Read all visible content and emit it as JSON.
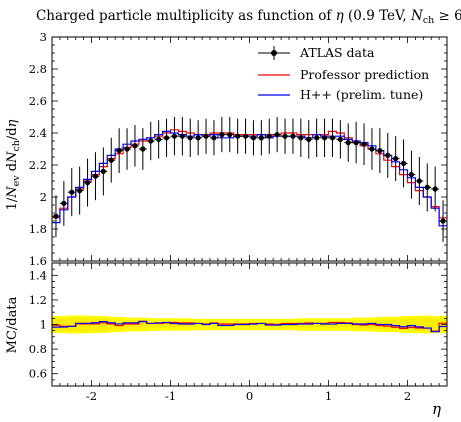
{
  "chart_data": {
    "type": "line",
    "title": "Charged particle multiplicity as function of η (0.9 TeV, N_ch ≥ 6)",
    "title_parts": {
      "prefix": "Charged particle multiplicity as function of ",
      "eta": "η",
      "cond_open": " (0.9 TeV, ",
      "nch": "N",
      "nch_sub": "ch",
      "cond_close": " ≥ 6)"
    },
    "xlabel": "η",
    "ylabel": "1/N_ev dN_ch/dη",
    "ylabel_parts": {
      "a": "1/",
      "n1": "N",
      "s1": "ev",
      "b": " d",
      "n2": "N",
      "s2": "ch",
      "c": "/d",
      "eta": "η"
    },
    "xlim": [
      -2.5,
      2.5
    ],
    "ylim": [
      1.6,
      3.0
    ],
    "xticks": [
      -2,
      -1,
      0,
      1,
      2
    ],
    "xtick_labels": [
      "-2",
      "-1",
      "0",
      "1",
      "2"
    ],
    "yticks": [
      1.6,
      1.8,
      2.0,
      2.2,
      2.4,
      2.6,
      2.8,
      3.0
    ],
    "ytick_labels": [
      "1.6",
      "1.8",
      "2",
      "2.2",
      "2.4",
      "2.6",
      "2.8",
      "3"
    ],
    "legend_position": "top-right",
    "grid": false,
    "x": [
      -2.45,
      -2.35,
      -2.25,
      -2.15,
      -2.05,
      -1.95,
      -1.85,
      -1.75,
      -1.65,
      -1.55,
      -1.45,
      -1.35,
      -1.25,
      -1.15,
      -1.05,
      -0.95,
      -0.85,
      -0.75,
      -0.65,
      -0.55,
      -0.45,
      -0.35,
      -0.25,
      -0.15,
      -0.05,
      0.05,
      0.15,
      0.25,
      0.35,
      0.45,
      0.55,
      0.65,
      0.75,
      0.85,
      0.95,
      1.05,
      1.15,
      1.25,
      1.35,
      1.45,
      1.55,
      1.65,
      1.75,
      1.85,
      1.95,
      2.05,
      2.15,
      2.25,
      2.35,
      2.45
    ],
    "series": [
      {
        "name": "ATLAS data",
        "color": "#000000",
        "style": "points",
        "values": [
          1.88,
          1.96,
          2.03,
          2.04,
          2.09,
          2.13,
          2.16,
          2.23,
          2.29,
          2.3,
          2.32,
          2.3,
          2.35,
          2.36,
          2.37,
          2.38,
          2.38,
          2.37,
          2.37,
          2.38,
          2.37,
          2.39,
          2.39,
          2.38,
          2.38,
          2.37,
          2.37,
          2.38,
          2.39,
          2.38,
          2.38,
          2.37,
          2.36,
          2.37,
          2.37,
          2.37,
          2.36,
          2.34,
          2.34,
          2.33,
          2.3,
          2.29,
          2.26,
          2.24,
          2.21,
          2.14,
          2.1,
          2.06,
          2.05,
          1.85
        ],
        "errors": [
          0.13,
          0.14,
          0.15,
          0.15,
          0.15,
          0.15,
          0.15,
          0.14,
          0.14,
          0.13,
          0.13,
          0.13,
          0.12,
          0.12,
          0.12,
          0.12,
          0.12,
          0.12,
          0.11,
          0.11,
          0.11,
          0.11,
          0.11,
          0.11,
          0.11,
          0.11,
          0.11,
          0.11,
          0.11,
          0.11,
          0.11,
          0.12,
          0.12,
          0.12,
          0.12,
          0.12,
          0.12,
          0.12,
          0.13,
          0.13,
          0.13,
          0.14,
          0.14,
          0.14,
          0.15,
          0.15,
          0.15,
          0.15,
          0.14,
          0.13
        ]
      },
      {
        "name": "Professor prediction",
        "color": "#ff0000",
        "style": "step",
        "values": [
          1.87,
          1.93,
          2.0,
          2.05,
          2.1,
          2.14,
          2.19,
          2.24,
          2.27,
          2.31,
          2.33,
          2.35,
          2.37,
          2.38,
          2.4,
          2.42,
          2.41,
          2.4,
          2.39,
          2.39,
          2.4,
          2.4,
          2.4,
          2.39,
          2.39,
          2.39,
          2.39,
          2.39,
          2.39,
          2.4,
          2.4,
          2.39,
          2.39,
          2.39,
          2.39,
          2.41,
          2.4,
          2.37,
          2.34,
          2.32,
          2.3,
          2.27,
          2.23,
          2.19,
          2.14,
          2.09,
          2.04,
          2.0,
          1.94,
          1.87
        ]
      },
      {
        "name": "H++ (prelim. tune)",
        "color": "#0000ff",
        "style": "step",
        "values": [
          1.84,
          1.92,
          2.0,
          2.06,
          2.11,
          2.16,
          2.21,
          2.26,
          2.3,
          2.33,
          2.35,
          2.36,
          2.37,
          2.39,
          2.41,
          2.4,
          2.39,
          2.38,
          2.39,
          2.38,
          2.39,
          2.37,
          2.37,
          2.38,
          2.38,
          2.38,
          2.39,
          2.37,
          2.38,
          2.38,
          2.38,
          2.38,
          2.37,
          2.39,
          2.38,
          2.38,
          2.38,
          2.36,
          2.35,
          2.34,
          2.32,
          2.29,
          2.26,
          2.22,
          2.17,
          2.12,
          2.06,
          2.0,
          1.93,
          1.82
        ]
      }
    ],
    "ratio_panel": {
      "ylabel": "MC/data",
      "ylim": [
        0.5,
        1.5
      ],
      "yticks": [
        0.6,
        0.8,
        1.0,
        1.2,
        1.4
      ],
      "ytick_labels": [
        "0.6",
        "0.8",
        "1",
        "1.2",
        "1.4"
      ],
      "band_color": "#ffff00",
      "band_halfwidth": [
        0.07,
        0.07,
        0.074,
        0.074,
        0.072,
        0.07,
        0.069,
        0.063,
        0.061,
        0.057,
        0.056,
        0.056,
        0.051,
        0.051,
        0.051,
        0.05,
        0.05,
        0.05,
        0.046,
        0.046,
        0.046,
        0.046,
        0.046,
        0.046,
        0.046,
        0.046,
        0.046,
        0.046,
        0.046,
        0.046,
        0.046,
        0.051,
        0.051,
        0.051,
        0.051,
        0.051,
        0.051,
        0.051,
        0.056,
        0.056,
        0.057,
        0.061,
        0.062,
        0.062,
        0.068,
        0.07,
        0.071,
        0.073,
        0.068,
        0.07
      ]
    }
  }
}
